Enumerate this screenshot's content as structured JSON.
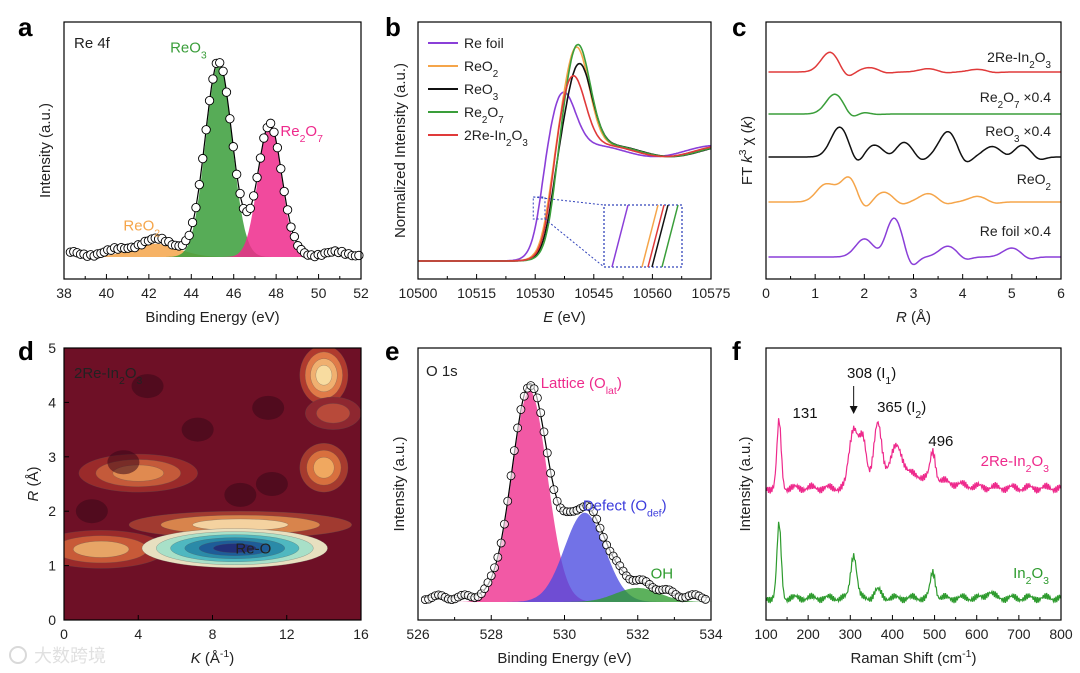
{
  "figure": {
    "panel_letters": [
      "a",
      "b",
      "c",
      "d",
      "e",
      "f"
    ],
    "watermark": "大数跨境"
  },
  "colors": {
    "re_foil": "#8a3fd8",
    "reo2": "#f5a54a",
    "reo3": "#111111",
    "re2o7": "#3a9e3a",
    "in2o3_2re": "#e03a3a",
    "pink": "#ee2a8c",
    "blue": "#3b3bdc",
    "green": "#2e9b2e"
  },
  "chart_data": [
    {
      "panel": "a",
      "type": "area",
      "title": "Re 4f",
      "xlabel": "Binding Energy (eV)",
      "ylabel": "Intensity (a.u.)",
      "xlim": [
        38,
        52
      ],
      "x_ticks": [
        "38",
        "40",
        "42",
        "44",
        "46",
        "48",
        "50",
        "52"
      ],
      "x_reversed": false,
      "peaks": [
        {
          "name": "ReO2",
          "label_main": "ReO",
          "label_sub": "2",
          "center": 42.3,
          "height": 0.06,
          "width": 1.1,
          "color": "#f5a54a"
        },
        {
          "name": "ReO3",
          "label_main": "ReO",
          "label_sub": "3",
          "center": 45.3,
          "height": 0.88,
          "width": 0.62,
          "color": "#3a9e3a"
        },
        {
          "name": "Re2O7",
          "label_main": "Re",
          "label_sub": "2",
          "label_main2": "O",
          "label_sub2": "7",
          "center": 47.7,
          "height": 0.6,
          "width": 0.55,
          "color": "#ee2a8c"
        }
      ]
    },
    {
      "panel": "b",
      "type": "line",
      "xlabel_italic": "E",
      "xlabel_rest": " (eV)",
      "ylabel": "Normalized Intensity (a.u.)",
      "xlim": [
        10500,
        10575
      ],
      "x_ticks": [
        "10500",
        "10515",
        "10530",
        "10545",
        "10560",
        "10575"
      ],
      "series": [
        {
          "name": "Re foil",
          "label_parts": [
            "Re foil"
          ],
          "edge": 10531.5,
          "peak_x": 10537,
          "peak": 1.55,
          "color": "#8a3fd8"
        },
        {
          "name": "ReO2",
          "label_parts": [
            "ReO",
            "2"
          ],
          "edge": 10533.5,
          "peak_x": 10540.5,
          "peak": 1.95,
          "color": "#f5a54a"
        },
        {
          "name": "ReO3",
          "label_parts": [
            "ReO",
            "3"
          ],
          "edge": 10534.2,
          "peak_x": 10541.2,
          "peak": 1.8,
          "color": "#111111"
        },
        {
          "name": "Re2O7",
          "label_parts": [
            "Re",
            "2",
            "O",
            "7"
          ],
          "edge": 10534.8,
          "peak_x": 10540.8,
          "peak": 1.98,
          "color": "#3a9e3a"
        },
        {
          "name": "2Re-In2O3",
          "label_parts": [
            "2Re-In",
            "2",
            "O",
            "3"
          ],
          "edge": 10534,
          "peak_x": 10539.5,
          "peak": 1.7,
          "color": "#e03a3a"
        }
      ]
    },
    {
      "panel": "c",
      "type": "line",
      "xlabel_italic": "R",
      "xlabel_rest": " (Å)",
      "ylabel": "FT k3 χ (k)",
      "xlim": [
        0,
        6
      ],
      "x_ticks": [
        "0",
        "1",
        "2",
        "3",
        "4",
        "5",
        "6"
      ],
      "series": [
        {
          "name": "2Re-In2O3",
          "label_parts": [
            "2Re-In",
            "2",
            "O",
            "3"
          ],
          "color": "#e03a3a",
          "peaks": [
            [
              1.3,
              0.9
            ],
            [
              2.1,
              0.2
            ],
            [
              3.3,
              0.15
            ],
            [
              4.3,
              0.12
            ]
          ]
        },
        {
          "name": "Re2O7 ×0.4",
          "label_parts": [
            "Re",
            "2",
            "O",
            "7",
            " ×0.4"
          ],
          "color": "#3a9e3a",
          "peaks": [
            [
              1.4,
              0.9
            ],
            [
              1.9,
              0.1
            ]
          ]
        },
        {
          "name": "ReO3 ×0.4",
          "label_parts": [
            "ReO",
            "3",
            " ×0.4"
          ],
          "color": "#111111",
          "peaks": [
            [
              1.5,
              1.0
            ],
            [
              2.2,
              0.4
            ],
            [
              2.8,
              0.5
            ],
            [
              3.7,
              0.85
            ],
            [
              4.6,
              0.35
            ],
            [
              5.2,
              0.4
            ]
          ]
        },
        {
          "name": "ReO2",
          "label_parts": [
            "ReO",
            "2"
          ],
          "color": "#f5a54a",
          "peaks": [
            [
              1.2,
              0.6
            ],
            [
              1.65,
              1.0
            ],
            [
              2.4,
              0.35
            ],
            [
              3.3,
              0.3
            ],
            [
              4.3,
              0.2
            ]
          ]
        },
        {
          "name": "Re foil ×0.4",
          "label_parts": [
            "Re foil ×0.4"
          ],
          "color": "#8a3fd8",
          "peaks": [
            [
              2.0,
              0.5
            ],
            [
              2.6,
              1.1
            ],
            [
              3.7,
              0.3
            ],
            [
              5.0,
              0.25
            ]
          ]
        }
      ]
    },
    {
      "panel": "d",
      "type": "heatmap",
      "title_parts": [
        "2Re-In",
        "2",
        "O",
        "3"
      ],
      "annotation": "Re-O",
      "xlabel_italic": "K",
      "xlabel_rest": " (Å",
      "xlabel_sup": "-1",
      "xlabel_close": ")",
      "ylabel_italic": "R",
      "ylabel_rest": " (Å)",
      "xlim": [
        0,
        16
      ],
      "ylim": [
        0,
        5
      ],
      "x_ticks": [
        "0",
        "4",
        "8",
        "12",
        "16"
      ],
      "y_ticks": [
        "0",
        "1",
        "2",
        "3",
        "4",
        "5"
      ]
    },
    {
      "panel": "e",
      "type": "area",
      "title": "O 1s",
      "xlabel": "Binding Energy (eV)",
      "ylabel": "Intensity (a.u.)",
      "xlim": [
        526,
        534
      ],
      "x_ticks": [
        "526",
        "528",
        "530",
        "532",
        "534"
      ],
      "peaks": [
        {
          "name": "Lattice (Olat)",
          "label_main": "Lattice (O",
          "label_sub": "lat",
          "label_close": ")",
          "center": 529.05,
          "height": 0.9,
          "width": 0.48,
          "color": "#ee2a8c"
        },
        {
          "name": "Defect (Odef)",
          "label_main": "Defect (O",
          "label_sub": "def",
          "label_close": ")",
          "center": 530.55,
          "height": 0.38,
          "width": 0.55,
          "color": "#4a4ae0"
        },
        {
          "name": "OH",
          "label_main": "OH",
          "center": 532.0,
          "height": 0.06,
          "width": 0.6,
          "color": "#2e9b2e"
        }
      ]
    },
    {
      "panel": "f",
      "type": "line",
      "xlabel": "Raman Shift (cm",
      "xlabel_sup": "-1",
      "xlabel_close": ")",
      "ylabel": "Intensity (a.u.)",
      "xlim": [
        100,
        800
      ],
      "x_ticks": [
        "100",
        "200",
        "300",
        "400",
        "500",
        "600",
        "700",
        "800"
      ],
      "annotations": [
        {
          "text": "131",
          "x": 131
        },
        {
          "text_main": "308 (I",
          "text_sub": "1",
          "text_close": ")",
          "x": 308
        },
        {
          "text_main": "365 (I",
          "text_sub": "2",
          "text_close": ")",
          "x": 365
        },
        {
          "text": "496",
          "x": 496
        }
      ],
      "series": [
        {
          "name": "2Re-In2O3",
          "label_parts": [
            "2Re-In",
            "2",
            "O",
            "3"
          ],
          "color": "#ee2a8c",
          "peaks": [
            [
              131,
              1.2,
              5
            ],
            [
              308,
              1.0,
              10
            ],
            [
              330,
              0.7,
              8
            ],
            [
              365,
              0.95,
              9
            ],
            [
              410,
              0.5,
              14
            ],
            [
              496,
              0.5,
              6
            ]
          ]
        },
        {
          "name": "In2O3",
          "label_parts": [
            "In",
            "2",
            "O",
            "3"
          ],
          "color": "#2e9b2e",
          "peaks": [
            [
              131,
              1.4,
              5
            ],
            [
              308,
              0.85,
              7
            ],
            [
              365,
              0.15,
              8
            ],
            [
              496,
              0.5,
              6
            ],
            [
              630,
              0.12,
              8
            ]
          ]
        }
      ]
    }
  ]
}
